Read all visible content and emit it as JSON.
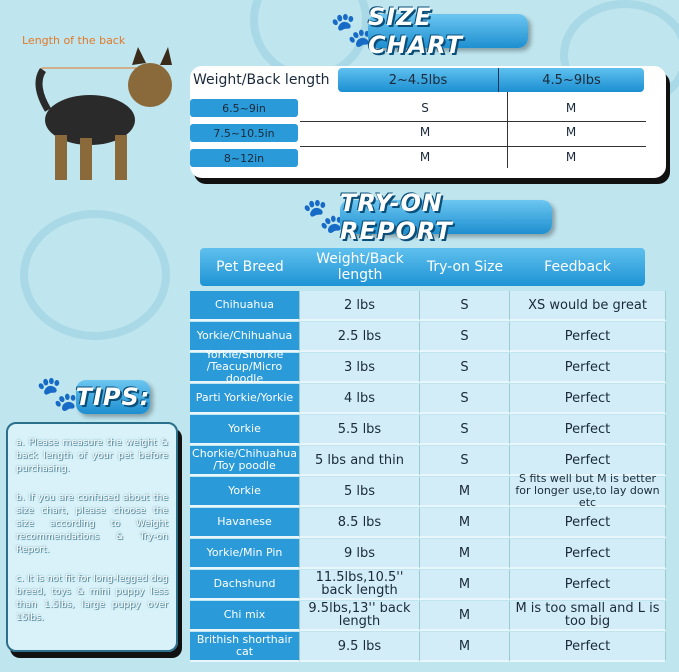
{
  "photo": {
    "label": "Length of the back"
  },
  "size_chart": {
    "title": "SIZE CHART",
    "header_label": "Weight/Back length",
    "columns": [
      "2~4.5lbs",
      "4.5~9lbs"
    ],
    "rows": [
      {
        "length": "6.5~9in",
        "values": [
          "S",
          "M"
        ]
      },
      {
        "length": "7.5~10.5in",
        "values": [
          "M",
          "M"
        ]
      },
      {
        "length": "8~12in",
        "values": [
          "M",
          "M"
        ]
      }
    ]
  },
  "try_on": {
    "title": "TRY-ON REPORT",
    "headers": [
      "Pet Breed",
      "Weight/Back length",
      "Try-on Size",
      "Feedback"
    ],
    "rows": [
      {
        "breed": "Chihuahua",
        "weight": "2 lbs",
        "size": "S",
        "feedback": "XS would be great"
      },
      {
        "breed": "Yorkie/Chihuahua",
        "weight": "2.5 lbs",
        "size": "S",
        "feedback": "Perfect"
      },
      {
        "breed": "Yorkie/Shorkie /Teacup/Micro doodle",
        "weight": "3 lbs",
        "size": "S",
        "feedback": "Perfect"
      },
      {
        "breed": "Parti Yorkie/Yorkie",
        "weight": "4 lbs",
        "size": "S",
        "feedback": "Perfect"
      },
      {
        "breed": "Yorkie",
        "weight": "5.5 lbs",
        "size": "S",
        "feedback": "Perfect"
      },
      {
        "breed": "Chorkie/Chihuahua /Toy poodle",
        "weight": "5 lbs and thin",
        "size": "S",
        "feedback": "Perfect"
      },
      {
        "breed": "Yorkie",
        "weight": "5 lbs",
        "size": "M",
        "feedback": "S fits well but M is better for longer use,to lay down etc"
      },
      {
        "breed": "Havanese",
        "weight": "8.5 lbs",
        "size": "M",
        "feedback": "Perfect"
      },
      {
        "breed": "Yorkie/Min Pin",
        "weight": "9 lbs",
        "size": "M",
        "feedback": "Perfect"
      },
      {
        "breed": "Dachshund",
        "weight": "11.5lbs,10.5'' back length",
        "size": "M",
        "feedback": "Perfect"
      },
      {
        "breed": "Chi mix",
        "weight": "9.5lbs,13'' back length",
        "size": "M",
        "feedback": "M is too small and L is too big"
      },
      {
        "breed": "Brithish shorthair cat",
        "weight": "9.5 lbs",
        "size": "M",
        "feedback": "Perfect"
      }
    ]
  },
  "tips": {
    "title": "TIPS:",
    "items": [
      "a. Please measure the weight & back length of your pet before purchasing.",
      "b. If you are confused about the size chart, please choose the size according to Weight recommendations & Try-on Report.",
      "c. It is not fit for long-legged dog breed, toys & mini puppy less than 1.5lbs, large puppy over 15lbs."
    ]
  },
  "colors": {
    "background": "#bfe5ee",
    "accent": "#2a9ad8",
    "label": "#e07a2a"
  }
}
